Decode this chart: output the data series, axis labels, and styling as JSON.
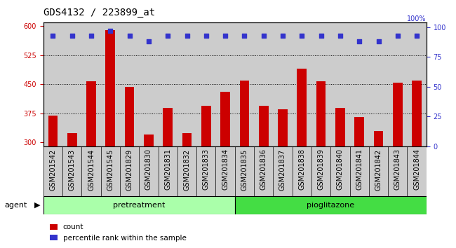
{
  "title": "GDS4132 / 223899_at",
  "categories": [
    "GSM201542",
    "GSM201543",
    "GSM201544",
    "GSM201545",
    "GSM201829",
    "GSM201830",
    "GSM201831",
    "GSM201832",
    "GSM201833",
    "GSM201834",
    "GSM201835",
    "GSM201836",
    "GSM201837",
    "GSM201838",
    "GSM201839",
    "GSM201840",
    "GSM201841",
    "GSM201842",
    "GSM201843",
    "GSM201844"
  ],
  "bar_values": [
    370,
    325,
    458,
    590,
    443,
    320,
    390,
    325,
    395,
    430,
    460,
    395,
    385,
    490,
    458,
    390,
    365,
    330,
    455,
    460
  ],
  "dot_values_pct": [
    93,
    93,
    93,
    97,
    93,
    88,
    93,
    93,
    93,
    93,
    93,
    93,
    93,
    93,
    93,
    93,
    88,
    88,
    93,
    93
  ],
  "pretreatment_count": 10,
  "ylim_left": [
    290,
    610
  ],
  "ylim_right": [
    0,
    104.16666
  ],
  "yticks_left": [
    300,
    375,
    450,
    525,
    600
  ],
  "yticks_right": [
    0,
    25,
    50,
    75,
    100
  ],
  "bar_color": "#cc0000",
  "dot_color": "#3333cc",
  "col_bg_color": "#cccccc",
  "pretreatment_color": "#aaffaa",
  "pioglitazone_color": "#44dd44",
  "legend_count_label": "count",
  "legend_pct_label": "percentile rank within the sample",
  "agent_label": "agent",
  "pretreatment_label": "pretreatment",
  "pioglitazone_label": "pioglitazone",
  "title_fontsize": 10,
  "tick_fontsize": 7,
  "bar_width": 0.5
}
